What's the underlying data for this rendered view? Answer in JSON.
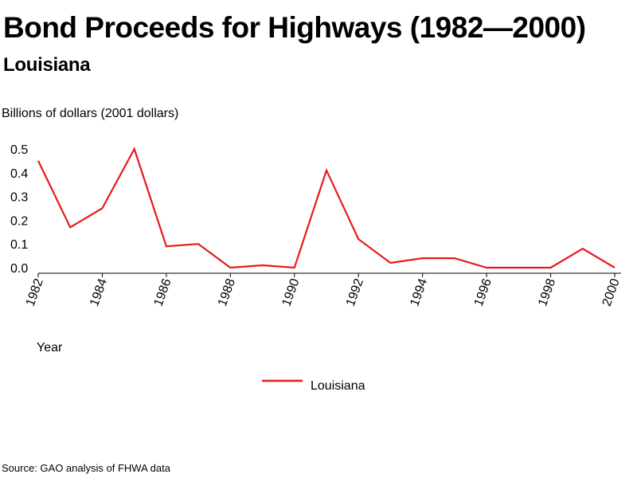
{
  "chart_data": {
    "type": "line",
    "title": "Bond Proceeds for Highways (1982—2000)",
    "subtitle": "Louisiana",
    "ylabel": "Billions of dollars (2001 dollars)",
    "xlabel": "Year",
    "ylim": [
      0,
      0.5
    ],
    "yticks": [
      "0.0",
      "0.1",
      "0.2",
      "0.3",
      "0.4",
      "0.5"
    ],
    "xticks": [
      "1982",
      "1984",
      "1986",
      "1988",
      "1990",
      "1992",
      "1994",
      "1996",
      "1998",
      "2000"
    ],
    "x": [
      1982,
      1983,
      1984,
      1985,
      1986,
      1987,
      1988,
      1989,
      1990,
      1991,
      1992,
      1993,
      1994,
      1995,
      1996,
      1997,
      1998,
      1999,
      2000
    ],
    "series": [
      {
        "name": "Louisiana",
        "color": "#e8191c",
        "values": [
          0.45,
          0.17,
          0.25,
          0.5,
          0.09,
          0.1,
          0.0,
          0.01,
          0.0,
          0.41,
          0.12,
          0.02,
          0.04,
          0.04,
          0.0,
          0.0,
          0.0,
          0.08,
          0.0
        ]
      }
    ],
    "grid": false,
    "legend_position": "bottom-center",
    "source": "Source: GAO analysis of FHWA data"
  }
}
